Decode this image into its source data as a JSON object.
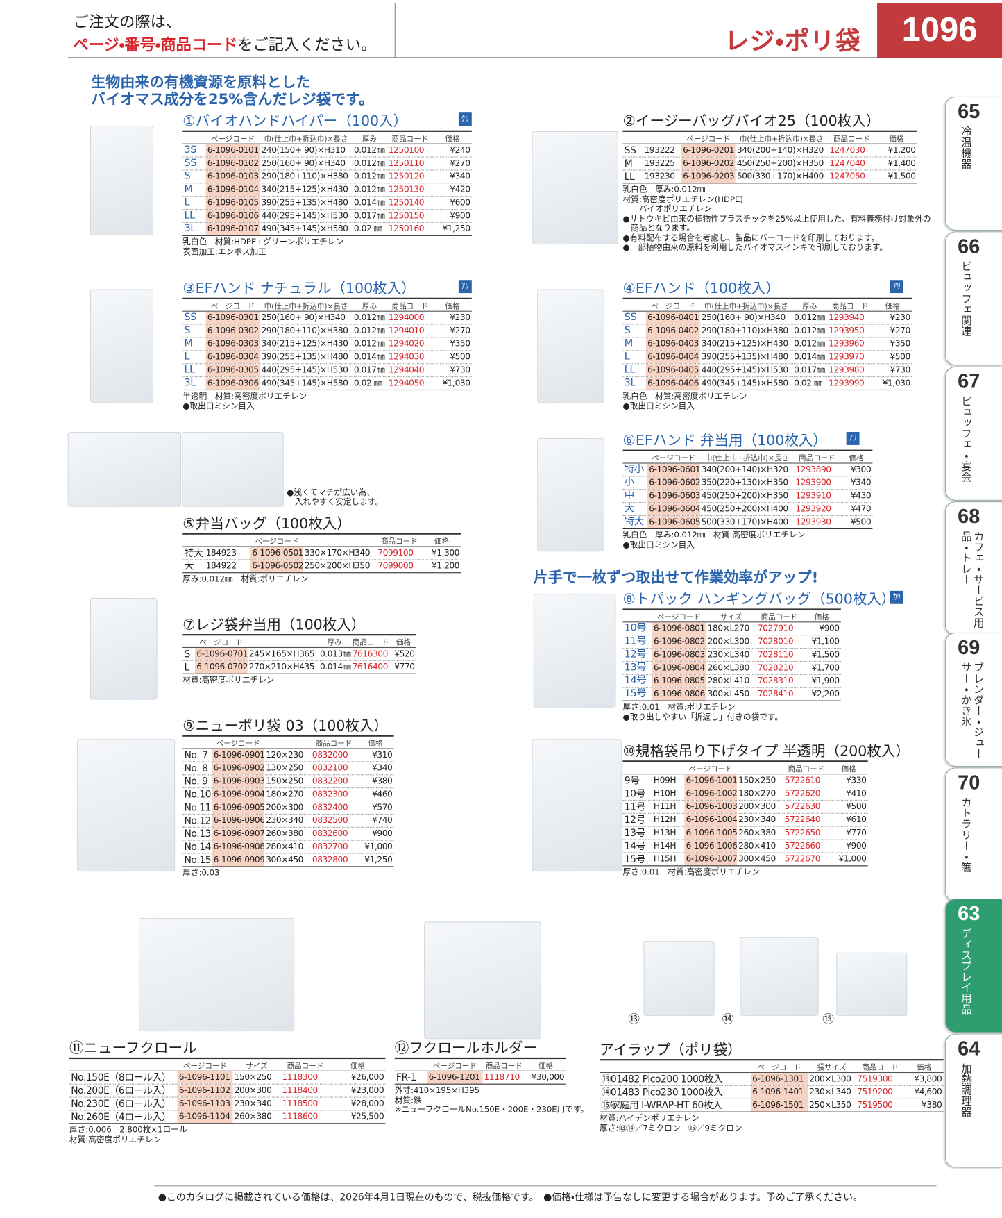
{
  "header": {
    "notice": "ご注文の際は、",
    "notice_red": "ページ・番号・商品コード",
    "notice_rest": "をご記入ください。",
    "category": "レジ・ポリ袋",
    "page": "1096"
  },
  "intro": [
    "生物由来の有機資源を原料とした",
    "バイオマス成分を25%含んだレジ袋です。"
  ],
  "banner": "片手で一枚ずつ取出せて作業効率がアップ!",
  "sections": [
    {
      "title": "①バイオハンドハイパー（100入）",
      "badge": "ｸﾘ",
      "headers": [
        "ページコード",
        "巾(仕上巾+折込巾)×長さ",
        "厚み",
        "商品コード",
        "価格"
      ],
      "rows": [
        [
          "3S",
          "6-1096-0101",
          "240(150+ 90)×H310",
          "0.012㎜",
          "1250100",
          "¥240"
        ],
        [
          "SS",
          "6-1096-0102",
          "250(160+ 90)×H340",
          "0.012㎜",
          "1250110",
          "¥270"
        ],
        [
          "S",
          "6-1096-0103",
          "290(180+110)×H380",
          "0.012㎜",
          "1250120",
          "¥340"
        ],
        [
          "M",
          "6-1096-0104",
          "340(215+125)×H430",
          "0.012㎜",
          "1250130",
          "¥420"
        ],
        [
          "L",
          "6-1096-0105",
          "390(255+135)×H480",
          "0.014㎜",
          "1250140",
          "¥600"
        ],
        [
          "LL",
          "6-1096-0106",
          "440(295+145)×H530",
          "0.017㎜",
          "1250150",
          "¥900"
        ],
        [
          "3L",
          "6-1096-0107",
          "490(345+145)×H580",
          "0.02 ㎜",
          "1250160",
          "¥1,250"
        ]
      ],
      "notes": [
        "乳白色　材質:HDPE+グリーンポリエチレン",
        "表面加工:エンボス加工"
      ]
    },
    {
      "title": "②イージーバッグバイオ25（100枚入）",
      "headers": [
        "ページコード",
        "巾(仕上巾+折込巾)×長さ",
        "商品コード",
        "価格"
      ],
      "rows": [
        [
          "SS",
          "193222",
          "6-1096-0201",
          "340(200+140)×H320",
          "1247030",
          "¥1,200"
        ],
        [
          "M",
          "193225",
          "6-1096-0202",
          "450(250+200)×H350",
          "1247040",
          "¥1,400"
        ],
        [
          "LL",
          "193230",
          "6-1096-0203",
          "500(330+170)×H400",
          "1247050",
          "¥1,500"
        ]
      ],
      "notes": [
        "乳白色　厚み:0.012㎜",
        "材質:高密度ポリエチレン(HDPE)",
        "　　バイオポリエチレン",
        "●サトウキビ由来の植物性プラスチックを25%以上使用した、有料義務付け対象外の",
        "　商品となります。",
        "●有料配布する場合を考慮し、製品にバーコードを印刷しております。",
        "●一部植物由来の原料を利用したバイオマスインキで印刷しております。"
      ]
    },
    {
      "title": "③EFハンド ナチュラル（100枚入）",
      "badge": "ｱﾘ",
      "headers": [
        "ページコード",
        "巾(仕上巾+折込巾)×長さ",
        "厚み",
        "商品コード",
        "価格"
      ],
      "rows": [
        [
          "SS",
          "6-1096-0301",
          "250(160+ 90)×H340",
          "0.012㎜",
          "1294000",
          "¥230"
        ],
        [
          "S",
          "6-1096-0302",
          "290(180+110)×H380",
          "0.012㎜",
          "1294010",
          "¥270"
        ],
        [
          "M",
          "6-1096-0303",
          "340(215+125)×H430",
          "0.012㎜",
          "1294020",
          "¥350"
        ],
        [
          "L",
          "6-1096-0304",
          "390(255+135)×H480",
          "0.014㎜",
          "1294030",
          "¥500"
        ],
        [
          "LL",
          "6-1096-0305",
          "440(295+145)×H530",
          "0.017㎜",
          "1294040",
          "¥730"
        ],
        [
          "3L",
          "6-1096-0306",
          "490(345+145)×H580",
          "0.02 ㎜",
          "1294050",
          "¥1,030"
        ]
      ],
      "notes": [
        "半透明　材質:高密度ポリエチレン",
        "●取出口ミシン目入"
      ]
    },
    {
      "title": "④EFハンド（100枚入）",
      "badge": "ｱﾘ",
      "headers": [
        "ページコード",
        "巾(仕上巾+折込巾)×長さ",
        "厚み",
        "商品コード",
        "価格"
      ],
      "rows": [
        [
          "SS",
          "6-1096-0401",
          "250(160+ 90)×H340",
          "0.012㎜",
          "1293940",
          "¥230"
        ],
        [
          "S",
          "6-1096-0402",
          "290(180+110)×H380",
          "0.012㎜",
          "1293950",
          "¥270"
        ],
        [
          "M",
          "6-1096-0403",
          "340(215+125)×H430",
          "0.012㎜",
          "1293960",
          "¥350"
        ],
        [
          "L",
          "6-1096-0404",
          "390(255+135)×H480",
          "0.014㎜",
          "1293970",
          "¥500"
        ],
        [
          "LL",
          "6-1096-0405",
          "440(295+145)×H530",
          "0.017㎜",
          "1293980",
          "¥730"
        ],
        [
          "3L",
          "6-1096-0406",
          "490(345+145)×H580",
          "0.02 ㎜",
          "1293990",
          "¥1,030"
        ]
      ],
      "notes": [
        "乳白色　材質:高密度ポリエチレン",
        "●取出口ミシン目入"
      ]
    },
    {
      "title": "⑤弁当バッグ（100枚入）",
      "headers": [
        "ページコード",
        "商品コード",
        "価格"
      ],
      "rows": [
        [
          "特大",
          "184923",
          "6-1096-0501",
          "330×170×H340",
          "7099100",
          "¥1,300"
        ],
        [
          "大",
          "184922",
          "6-1096-0502",
          "250×200×H350",
          "7099000",
          "¥1,200"
        ]
      ],
      "notes": [
        "厚み:0.012㎜　材質:ポリエチレン"
      ],
      "callout": [
        "●浅くてマチが広い為、",
        "　入れやすく安定します。"
      ]
    },
    {
      "title": "⑥EFハンド 弁当用（100枚入）",
      "badge": "ｱﾘ",
      "headers": [
        "ページコード",
        "巾(仕上巾+折込巾)×長さ",
        "商品コード",
        "価格"
      ],
      "rows": [
        [
          "特小",
          "6-1096-0601",
          "340(200+140)×H320",
          "1293890",
          "¥300"
        ],
        [
          "小",
          "6-1096-0602",
          "350(220+130)×H350",
          "1293900",
          "¥340"
        ],
        [
          "中",
          "6-1096-0603",
          "450(250+200)×H350",
          "1293910",
          "¥430"
        ],
        [
          "大",
          "6-1096-0604",
          "450(250+200)×H400",
          "1293920",
          "¥470"
        ],
        [
          "特大",
          "6-1096-0605",
          "500(330+170)×H400",
          "1293930",
          "¥500"
        ]
      ],
      "notes": [
        "乳白色　厚み:0.012㎜　材質:高密度ポリエチレン",
        "●取出口ミシン目入"
      ]
    },
    {
      "title": "⑦レジ袋弁当用（100枚入）",
      "headers": [
        "ページコード",
        "厚み",
        "商品コード",
        "価格"
      ],
      "rows": [
        [
          "S",
          "6-1096-0701",
          "245×165×H365",
          "0.013㎜",
          "7616300",
          "¥520"
        ],
        [
          "L",
          "6-1096-0702",
          "270×210×H435",
          "0.014㎜",
          "7616400",
          "¥770"
        ]
      ],
      "notes": [
        "材質:高密度ポリエチレン"
      ]
    },
    {
      "title": "⑧トパック ハンギングバッグ（500枚入）",
      "badge": "ｶﾘ",
      "headers": [
        "ページコード",
        "サイズ",
        "商品コード",
        "価格"
      ],
      "rows": [
        [
          "10号",
          "6-1096-0801",
          "180×L270",
          "7027910",
          "¥900"
        ],
        [
          "11号",
          "6-1096-0802",
          "200×L300",
          "7028010",
          "¥1,100"
        ],
        [
          "12号",
          "6-1096-0803",
          "230×L340",
          "7028110",
          "¥1,500"
        ],
        [
          "13号",
          "6-1096-0804",
          "260×L380",
          "7028210",
          "¥1,700"
        ],
        [
          "14号",
          "6-1096-0805",
          "280×L410",
          "7028310",
          "¥1,900"
        ],
        [
          "15号",
          "6-1096-0806",
          "300×L450",
          "7028410",
          "¥2,200"
        ]
      ],
      "notes": [
        "厚さ:0.01　材質:ポリエチレン",
        "●取り出しやすい「折返し」付きの袋です。"
      ]
    },
    {
      "title": "⑨ニューポリ袋 03（100枚入）",
      "headers": [
        "ページコード",
        "商品コード",
        "価格"
      ],
      "rows": [
        [
          "No. 7",
          "6-1096-0901",
          "120×230",
          "0832000",
          "¥310"
        ],
        [
          "No. 8",
          "6-1096-0902",
          "130×250",
          "0832100",
          "¥340"
        ],
        [
          "No. 9",
          "6-1096-0903",
          "150×250",
          "0832200",
          "¥380"
        ],
        [
          "No.10",
          "6-1096-0904",
          "180×270",
          "0832300",
          "¥460"
        ],
        [
          "No.11",
          "6-1096-0905",
          "200×300",
          "0832400",
          "¥570"
        ],
        [
          "No.12",
          "6-1096-0906",
          "230×340",
          "0832500",
          "¥740"
        ],
        [
          "No.13",
          "6-1096-0907",
          "260×380",
          "0832600",
          "¥900"
        ],
        [
          "No.14",
          "6-1096-0908",
          "280×410",
          "0832700",
          "¥1,000"
        ],
        [
          "No.15",
          "6-1096-0909",
          "300×450",
          "0832800",
          "¥1,250"
        ]
      ],
      "notes": [
        "厚さ:0.03"
      ]
    },
    {
      "title": "⑩規格袋吊り下げタイプ 半透明（200枚入）",
      "headers": [
        "ページコード",
        "商品コード",
        "価格"
      ],
      "rows": [
        [
          "9号",
          "H09H",
          "6-1096-1001",
          "150×250",
          "5722610",
          "¥330"
        ],
        [
          "10号",
          "H10H",
          "6-1096-1002",
          "180×270",
          "5722620",
          "¥410"
        ],
        [
          "11号",
          "H11H",
          "6-1096-1003",
          "200×300",
          "5722630",
          "¥500"
        ],
        [
          "12号",
          "H12H",
          "6-1096-1004",
          "230×340",
          "5722640",
          "¥610"
        ],
        [
          "13号",
          "H13H",
          "6-1096-1005",
          "260×380",
          "5722650",
          "¥770"
        ],
        [
          "14号",
          "H14H",
          "6-1096-1006",
          "280×410",
          "5722660",
          "¥900"
        ],
        [
          "15号",
          "H15H",
          "6-1096-1007",
          "300×450",
          "5722670",
          "¥1,000"
        ]
      ],
      "notes": [
        "厚さ:0.01　材質:高密度ポリエチレン"
      ]
    },
    {
      "title": "⑪ニューフクロール",
      "headers": [
        "ページコード",
        "サイズ",
        "商品コード",
        "価格"
      ],
      "rows": [
        [
          "No.150E（8ロール入）",
          "6-1096-1101",
          "150×250",
          "1118300",
          "¥26,000"
        ],
        [
          "No.200E（6ロール入）",
          "6-1096-1102",
          "200×300",
          "1118400",
          "¥23,000"
        ],
        [
          "No.230E（6ロール入）",
          "6-1096-1103",
          "230×340",
          "1118500",
          "¥28,000"
        ],
        [
          "No.260E（4ロール入）",
          "6-1096-1104",
          "260×380",
          "1118600",
          "¥25,500"
        ]
      ],
      "notes": [
        "厚さ:0.006　2,800枚×1ロール",
        "材質:高密度ポリエチレン"
      ]
    },
    {
      "title": "⑫フクロールホルダー",
      "headers": [
        "ページコード",
        "商品コード",
        "価格"
      ],
      "rows": [
        [
          "FR-1",
          "6-1096-1201",
          "1118710",
          "¥30,000"
        ]
      ],
      "notes": [
        "外寸:410×195×H395",
        "材質:鉄",
        "※ニューフクロールNo.150E・200E・230E用です。"
      ]
    },
    {
      "title": "アイラップ（ポリ袋）",
      "headers": [
        "ページコード",
        "袋サイズ",
        "商品コード",
        "価格"
      ],
      "rows": [
        [
          "⑬01482 Pico200 1000枚入",
          "6-1096-1301",
          "200×L300",
          "7519300",
          "¥3,800"
        ],
        [
          "⑭01483 Pico230 1000枚入",
          "6-1096-1401",
          "230×L340",
          "7519200",
          "¥4,600"
        ],
        [
          "⑮家庭用 I-WRAP-HT 60枚入",
          "6-1096-1501",
          "250×L350",
          "7519500",
          "¥380"
        ]
      ],
      "notes": [
        "材質:ハイデンポリエチレン",
        "厚さ:⑬⑭／7ミクロン　⑮／9ミクロン"
      ],
      "image_labels": [
        "⑬",
        "⑭",
        "⑮"
      ]
    }
  ],
  "tabs": [
    {
      "number": "65",
      "label": "冷温機器"
    },
    {
      "number": "66",
      "label": "ビュッフェ関連"
    },
    {
      "number": "67",
      "label": "ビュッフェ・宴会"
    },
    {
      "number": "68",
      "label": "カフェ・サービス用品・トレー"
    },
    {
      "number": "69",
      "label": "ブレンダー・ジューサー・かき氷"
    },
    {
      "number": "70",
      "label": "カトラリー・箸"
    },
    {
      "number": "63",
      "label": "ディスプレイ用品"
    },
    {
      "number": "64",
      "label": "加熱調理器"
    }
  ],
  "footer": [
    "●このカタログに掲載されている価格は、2026年4月1日現在のもので、税抜価格です。",
    "●価格・仕様は予告なしに変更する場合があります。予めご了承ください。"
  ]
}
